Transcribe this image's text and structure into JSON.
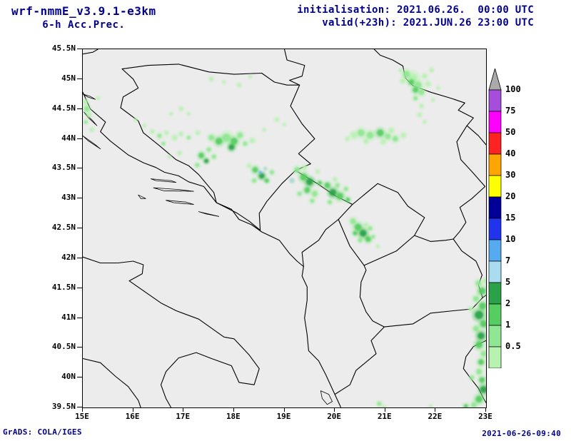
{
  "header": {
    "model": "wrf-nmmE_v3.9.1-e3km",
    "subtitle": "6-h Acc.Prec.",
    "init_label": "initialisation: 2021.06.26.  00:00 UTC",
    "valid_label": "valid(+23h): 2021.JUN.26 23:00 UTC"
  },
  "footer": {
    "left": "GrADS: COLA/IGES",
    "right": "2021-06-26-09:40"
  },
  "chart_data": {
    "type": "heatmap",
    "subtype": "precipitation-forecast-map",
    "title": "wrf-nmmE_v3.9.1-e3km 6-h Acc.Prec.",
    "region": "Balkans / Adriatic",
    "x_axis": {
      "min": 15,
      "max": 23,
      "ticks": [
        {
          "v": 15,
          "label": "15E"
        },
        {
          "v": 16,
          "label": "16E"
        },
        {
          "v": 17,
          "label": "17E"
        },
        {
          "v": 18,
          "label": "18E"
        },
        {
          "v": 19,
          "label": "19E"
        },
        {
          "v": 20,
          "label": "20E"
        },
        {
          "v": 21,
          "label": "21E"
        },
        {
          "v": 22,
          "label": "22E"
        },
        {
          "v": 23,
          "label": "23E"
        }
      ]
    },
    "y_axis": {
      "min": 39.5,
      "max": 45.5,
      "ticks": [
        {
          "v": 45.5,
          "label": "45.5N"
        },
        {
          "v": 45,
          "label": "45N"
        },
        {
          "v": 44.5,
          "label": "44.5N"
        },
        {
          "v": 44,
          "label": "44N"
        },
        {
          "v": 43.5,
          "label": "43.5N"
        },
        {
          "v": 43,
          "label": "43N"
        },
        {
          "v": 42.5,
          "label": "42.5N"
        },
        {
          "v": 42,
          "label": "42N"
        },
        {
          "v": 41.5,
          "label": "41.5N"
        },
        {
          "v": 41,
          "label": "41N"
        },
        {
          "v": 40.5,
          "label": "40.5N"
        },
        {
          "v": 40,
          "label": "40N"
        },
        {
          "v": 39.5,
          "label": "39.5N"
        }
      ]
    },
    "legend": {
      "labels": [
        "100",
        "75",
        "50",
        "40",
        "30",
        "20",
        "15",
        "10",
        "7",
        "5",
        "2",
        "1",
        "0.5"
      ],
      "colors_top_to_bottom": [
        "#aaaaaa",
        "#a64ddb",
        "#ff00ff",
        "#ff2222",
        "#ffa500",
        "#ffff00",
        "#000099",
        "#2233ee",
        "#55aaf0",
        "#aadcf0",
        "#2ba24a",
        "#55cd60",
        "#8fe693",
        "#b7f2b0"
      ]
    },
    "palette_map_levels": [
      "#b7f2b0",
      "#8fe693",
      "#55cd60",
      "#2ba24a",
      "#aadcf0",
      "#55aaf0"
    ],
    "precip_cells": [
      [
        21.42,
        45.08,
        5,
        1
      ],
      [
        21.55,
        45.02,
        6,
        0
      ],
      [
        21.52,
        44.95,
        4,
        2
      ],
      [
        21.65,
        44.9,
        5,
        1
      ],
      [
        21.6,
        44.82,
        4,
        2
      ],
      [
        21.72,
        44.78,
        4,
        1
      ],
      [
        21.35,
        44.97,
        3,
        0
      ],
      [
        21.78,
        45.05,
        3,
        0
      ],
      [
        21.85,
        44.92,
        3,
        0
      ],
      [
        21.6,
        44.68,
        3,
        1
      ],
      [
        21.72,
        44.55,
        2.5,
        0
      ],
      [
        21.68,
        44.4,
        2.5,
        0
      ],
      [
        21.78,
        44.28,
        2,
        0
      ],
      [
        21.92,
        45.15,
        2.5,
        0
      ],
      [
        21.3,
        45.15,
        2,
        0
      ],
      [
        15.05,
        44.62,
        3,
        0
      ],
      [
        15.08,
        44.5,
        4,
        1
      ],
      [
        15.12,
        44.4,
        3,
        0
      ],
      [
        15.06,
        44.28,
        2.5,
        1
      ],
      [
        15.18,
        44.15,
        2.5,
        0
      ],
      [
        15.3,
        44.68,
        2,
        0
      ],
      [
        16.05,
        44.32,
        2,
        0
      ],
      [
        16.22,
        44.22,
        2,
        0
      ],
      [
        16.38,
        44.12,
        2.5,
        0
      ],
      [
        16.52,
        44.05,
        3,
        1
      ],
      [
        16.66,
        44.1,
        2.5,
        0
      ],
      [
        16.82,
        44.02,
        3,
        0
      ],
      [
        16.6,
        43.92,
        2.5,
        1
      ],
      [
        16.95,
        44.08,
        2.5,
        0
      ],
      [
        17.1,
        44.02,
        2.5,
        1
      ],
      [
        17.28,
        44.1,
        2.5,
        0
      ],
      [
        16.75,
        44.42,
        2,
        0
      ],
      [
        16.95,
        44.5,
        2.5,
        0
      ],
      [
        17.1,
        44.42,
        2,
        0
      ],
      [
        17.55,
        44.02,
        4,
        1
      ],
      [
        17.7,
        43.96,
        5,
        2
      ],
      [
        17.85,
        44.02,
        6,
        1
      ],
      [
        18.0,
        43.96,
        5,
        2
      ],
      [
        18.12,
        44.06,
        4,
        1
      ],
      [
        17.95,
        43.86,
        4,
        3
      ],
      [
        18.22,
        43.92,
        3,
        1
      ],
      [
        18.36,
        43.97,
        3,
        0
      ],
      [
        17.5,
        43.82,
        3,
        1
      ],
      [
        17.35,
        43.72,
        4,
        2
      ],
      [
        17.45,
        43.63,
        3,
        3
      ],
      [
        17.6,
        43.7,
        3,
        1
      ],
      [
        17.27,
        43.56,
        3,
        1
      ],
      [
        16.92,
        43.76,
        2.5,
        0
      ],
      [
        16.72,
        43.7,
        2,
        0
      ],
      [
        18.42,
        43.48,
        4,
        2
      ],
      [
        18.55,
        43.38,
        4,
        3
      ],
      [
        18.65,
        43.3,
        3,
        2
      ],
      [
        18.4,
        43.3,
        3,
        1
      ],
      [
        18.75,
        43.44,
        3,
        1
      ],
      [
        18.52,
        43.44,
        1.8,
        5
      ],
      [
        18.62,
        43.5,
        1.5,
        4
      ],
      [
        18.3,
        43.55,
        2.5,
        0
      ],
      [
        18.85,
        44.32,
        2.5,
        0
      ],
      [
        19.0,
        44.24,
        2,
        0
      ],
      [
        18.6,
        44.15,
        2,
        0
      ],
      [
        19.25,
        43.48,
        4,
        1
      ],
      [
        19.38,
        43.36,
        5,
        2
      ],
      [
        19.5,
        43.28,
        5,
        3
      ],
      [
        19.45,
        43.14,
        4,
        2
      ],
      [
        19.6,
        43.08,
        4,
        1
      ],
      [
        19.3,
        43.08,
        3,
        1
      ],
      [
        19.7,
        43.26,
        3,
        2
      ],
      [
        19.55,
        42.96,
        3,
        1
      ],
      [
        19.4,
        43.52,
        3,
        0
      ],
      [
        19.66,
        43.45,
        2.5,
        0
      ],
      [
        19.15,
        43.3,
        2,
        4
      ],
      [
        19.85,
        43.22,
        4,
        2
      ],
      [
        19.96,
        43.1,
        5,
        3
      ],
      [
        20.1,
        43.04,
        5,
        2
      ],
      [
        20.05,
        43.22,
        3,
        1
      ],
      [
        20.22,
        43.16,
        3,
        1
      ],
      [
        20.26,
        42.98,
        3,
        2
      ],
      [
        19.9,
        42.94,
        3,
        1
      ],
      [
        20.0,
        43.32,
        2.5,
        0
      ],
      [
        20.36,
        42.62,
        4,
        1
      ],
      [
        20.46,
        42.52,
        5,
        2
      ],
      [
        20.56,
        42.42,
        5,
        3
      ],
      [
        20.66,
        42.32,
        4,
        2
      ],
      [
        20.5,
        42.3,
        3,
        1
      ],
      [
        20.4,
        42.42,
        3,
        2
      ],
      [
        20.7,
        42.5,
        3,
        1
      ],
      [
        20.62,
        42.56,
        2.5,
        0
      ],
      [
        20.76,
        42.36,
        2.5,
        1
      ],
      [
        20.85,
        42.2,
        2,
        0
      ],
      [
        20.38,
        44.06,
        4,
        0
      ],
      [
        20.52,
        44.1,
        5,
        1
      ],
      [
        20.7,
        44.06,
        5,
        1
      ],
      [
        20.9,
        44.1,
        5,
        2
      ],
      [
        21.05,
        44.04,
        4,
        1
      ],
      [
        21.2,
        44.0,
        4,
        1
      ],
      [
        21.36,
        44.06,
        3,
        0
      ],
      [
        20.62,
        43.96,
        3,
        0
      ],
      [
        20.96,
        43.95,
        3,
        0
      ],
      [
        21.12,
        44.14,
        3,
        0
      ],
      [
        20.25,
        44.0,
        2.5,
        0
      ],
      [
        17.55,
        45.0,
        2.5,
        0
      ],
      [
        17.8,
        44.95,
        2,
        0
      ],
      [
        18.1,
        44.9,
        2.5,
        0
      ],
      [
        18.32,
        45.04,
        2,
        0
      ],
      [
        22.85,
        41.58,
        4,
        1
      ],
      [
        22.92,
        41.45,
        5,
        2
      ],
      [
        22.8,
        41.32,
        4,
        1
      ],
      [
        22.93,
        41.2,
        5,
        2
      ],
      [
        22.86,
        41.05,
        6,
        3
      ],
      [
        22.95,
        40.9,
        5,
        2
      ],
      [
        22.8,
        40.82,
        4,
        1
      ],
      [
        22.9,
        40.7,
        5,
        3
      ],
      [
        22.86,
        40.55,
        5,
        2
      ],
      [
        22.95,
        40.4,
        4,
        1
      ],
      [
        22.9,
        40.26,
        4,
        2
      ],
      [
        22.86,
        40.1,
        4,
        1
      ],
      [
        22.92,
        39.96,
        4,
        2
      ],
      [
        22.95,
        39.8,
        5,
        3
      ],
      [
        22.86,
        39.64,
        5,
        2
      ],
      [
        22.76,
        39.54,
        4,
        1
      ],
      [
        22.6,
        39.52,
        3,
        2
      ],
      [
        22.98,
        41.62,
        3,
        0
      ],
      [
        22.7,
        41.15,
        3,
        0
      ],
      [
        22.72,
        40.0,
        3,
        1
      ],
      [
        20.88,
        39.56,
        3,
        1
      ],
      [
        20.98,
        39.5,
        2.5,
        0
      ],
      [
        21.9,
        39.52,
        2,
        0
      ],
      [
        22.05,
        44.85,
        2,
        0
      ],
      [
        21.95,
        44.65,
        2,
        0
      ]
    ]
  }
}
